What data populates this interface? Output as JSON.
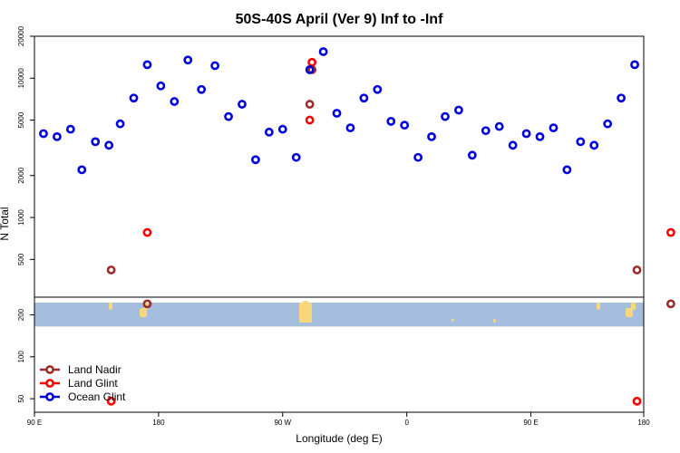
{
  "chart_data": {
    "type": "scatter",
    "title": "50S-40S April (Ver 9)   Inf to -Inf",
    "xlabel": "Longitude (deg E)",
    "ylabel": "N Total",
    "y_scale": "log",
    "xlim": [
      90,
      360
    ],
    "ylim": [
      40,
      20000
    ],
    "x_tick_values": [
      90,
      145,
      200,
      255,
      310,
      360
    ],
    "x_tick_labels": [
      "90 E",
      "180",
      "90 W",
      "0",
      "90 E",
      "180"
    ],
    "y_tick_values": [
      50,
      100,
      200,
      500,
      1000,
      2000,
      5000,
      10000,
      20000
    ],
    "y_tick_labels": [
      "50",
      "100",
      "200",
      "500",
      "1000",
      "2000",
      "5000",
      "10000",
      "20000"
    ],
    "grid": false,
    "legend_position": "bottom-left",
    "map_strip": {
      "ocean_color": "#a6bedd",
      "land_color": "#f7d77a",
      "y_range": [
        165,
        245
      ]
    },
    "series": [
      {
        "name": "Land Nadir",
        "color": "#9b2d2d",
        "points": [
          [
            124,
            420
          ],
          [
            140,
            240
          ],
          [
            212,
            6500
          ],
          [
            213,
            11500
          ],
          [
            357,
            420
          ],
          [
            372,
            240
          ]
        ]
      },
      {
        "name": "Land Glint",
        "color": "#ff0000",
        "points": [
          [
            124,
            48
          ],
          [
            140,
            780
          ],
          [
            212,
            5000
          ],
          [
            213,
            13000
          ],
          [
            357,
            48
          ],
          [
            372,
            780
          ]
        ]
      },
      {
        "name": "Ocean Glint",
        "color": "#0000dd",
        "points": [
          [
            94,
            4000
          ],
          [
            100,
            3800
          ],
          [
            106,
            4300
          ],
          [
            111,
            2200
          ],
          [
            117,
            3500
          ],
          [
            123,
            3300
          ],
          [
            128,
            4700
          ],
          [
            134,
            7200
          ],
          [
            140,
            12500
          ],
          [
            146,
            8800
          ],
          [
            152,
            6800
          ],
          [
            158,
            13500
          ],
          [
            164,
            8300
          ],
          [
            170,
            12300
          ],
          [
            176,
            5300
          ],
          [
            182,
            6500
          ],
          [
            188,
            2600
          ],
          [
            194,
            4100
          ],
          [
            200,
            4300
          ],
          [
            206,
            2700
          ],
          [
            212,
            11500
          ],
          [
            218,
            15500
          ],
          [
            224,
            5600
          ],
          [
            230,
            4400
          ],
          [
            236,
            7200
          ],
          [
            242,
            8300
          ],
          [
            248,
            4900
          ],
          [
            254,
            4600
          ],
          [
            260,
            2700
          ],
          [
            266,
            3800
          ],
          [
            272,
            5300
          ],
          [
            278,
            5900
          ],
          [
            284,
            2800
          ],
          [
            290,
            4200
          ],
          [
            296,
            4500
          ],
          [
            302,
            3300
          ],
          [
            308,
            4000
          ],
          [
            314,
            3800
          ],
          [
            320,
            4400
          ],
          [
            326,
            2200
          ],
          [
            332,
            3500
          ],
          [
            338,
            3300
          ],
          [
            344,
            4700
          ],
          [
            350,
            7200
          ],
          [
            356,
            12500
          ]
        ]
      }
    ]
  }
}
